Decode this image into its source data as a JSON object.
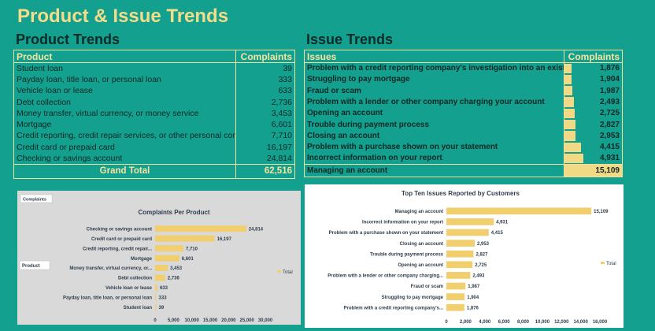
{
  "title": "Product & Issue Trends",
  "product_section_title": "Product Trends",
  "issue_section_title": "Issue Trends",
  "product_table": {
    "headers": [
      "Product",
      "Complaints"
    ],
    "rows": [
      {
        "label": "Student loan",
        "value": "39"
      },
      {
        "label": "Payday loan, title loan, or personal loan",
        "value": "333"
      },
      {
        "label": "Vehicle loan or lease",
        "value": "633"
      },
      {
        "label": "Debt collection",
        "value": "2,736"
      },
      {
        "label": "Money transfer, virtual currency, or money service",
        "value": "3,453"
      },
      {
        "label": "Mortgage",
        "value": "6,601"
      },
      {
        "label": "Credit reporting, credit repair services, or other personal consumer reports",
        "value": "7,710"
      },
      {
        "label": "Credit card or prepaid card",
        "value": "16,197"
      },
      {
        "label": "Checking or savings account",
        "value": "24,814"
      }
    ],
    "total_label": "Grand Total",
    "total_value": "62,516"
  },
  "issue_table": {
    "headers": [
      "Issues",
      "Complaints"
    ],
    "rows": [
      {
        "label": "Problem with a credit reporting company's investigation into an existing problem",
        "value": "1,876",
        "n": 1876
      },
      {
        "label": "Struggling to pay mortgage",
        "value": "1,904",
        "n": 1904
      },
      {
        "label": "Fraud or scam",
        "value": "1,987",
        "n": 1987
      },
      {
        "label": "Problem with a lender or other company charging your account",
        "value": "2,493",
        "n": 2493
      },
      {
        "label": "Opening an account",
        "value": "2,725",
        "n": 2725
      },
      {
        "label": "Trouble during payment process",
        "value": "2,827",
        "n": 2827
      },
      {
        "label": "Closing an account",
        "value": "2,953",
        "n": 2953
      },
      {
        "label": "Problem with a purchase shown on your statement",
        "value": "4,415",
        "n": 4415
      },
      {
        "label": "Incorrect information on your report",
        "value": "4,931",
        "n": 4931
      }
    ],
    "total_label": "Managing an account",
    "total_value": "15,109",
    "total_n": 15109,
    "bar_max": 15109
  },
  "chart_data": [
    {
      "type": "bar",
      "orientation": "horizontal",
      "title": "Complaints Per Product",
      "field_button": "Complaints",
      "axis_button": "Product",
      "legend": [
        "Total"
      ],
      "legend_position": "right",
      "categories": [
        "Checking or savings account",
        "Credit card or prepaid card",
        "Credit reporting, credit repair...",
        "Mortgage",
        "Money transfer, virtual currency, or...",
        "Debt collection",
        "Vehicle loan or lease",
        "Payday loan, title loan, or personal loan",
        "Student loan"
      ],
      "values": [
        24814,
        16197,
        7710,
        6601,
        3453,
        2736,
        633,
        333,
        39
      ],
      "labels": [
        "24,814",
        "16,197",
        "7,710",
        "6,601",
        "3,453",
        "2,736",
        "633",
        "333",
        "39"
      ],
      "xlim": [
        0,
        30000
      ],
      "xticks": [
        "0",
        "5,000",
        "10,000",
        "15,000",
        "20,000",
        "25,000",
        "30,000"
      ],
      "color": "#f1cf6e"
    },
    {
      "type": "bar",
      "orientation": "horizontal",
      "title": "Top Ten Issues Reported by Customers",
      "legend": [
        "Total"
      ],
      "legend_position": "right",
      "categories": [
        "Managing an account",
        "Incorrect information on your report",
        "Problem with a purchase shown on your statement",
        "Closing an account",
        "Trouble during payment process",
        "Opening an account",
        "Problem with a lender or other company charging...",
        "Fraud or scam",
        "Struggling to pay mortgage",
        "Problem with a credit reporting company's..."
      ],
      "values": [
        15109,
        4931,
        4415,
        2953,
        2827,
        2725,
        2493,
        1987,
        1904,
        1876
      ],
      "labels": [
        "15,109",
        "4,931",
        "4,415",
        "2,953",
        "2,827",
        "2,725",
        "2,493",
        "1,987",
        "1,904",
        "1,876"
      ],
      "xlim": [
        0,
        16000
      ],
      "xticks": [
        "0",
        "2,000",
        "4,000",
        "6,000",
        "8,000",
        "10,000",
        "12,000",
        "14,000",
        "16,000"
      ],
      "color": "#f1cf6e"
    }
  ]
}
